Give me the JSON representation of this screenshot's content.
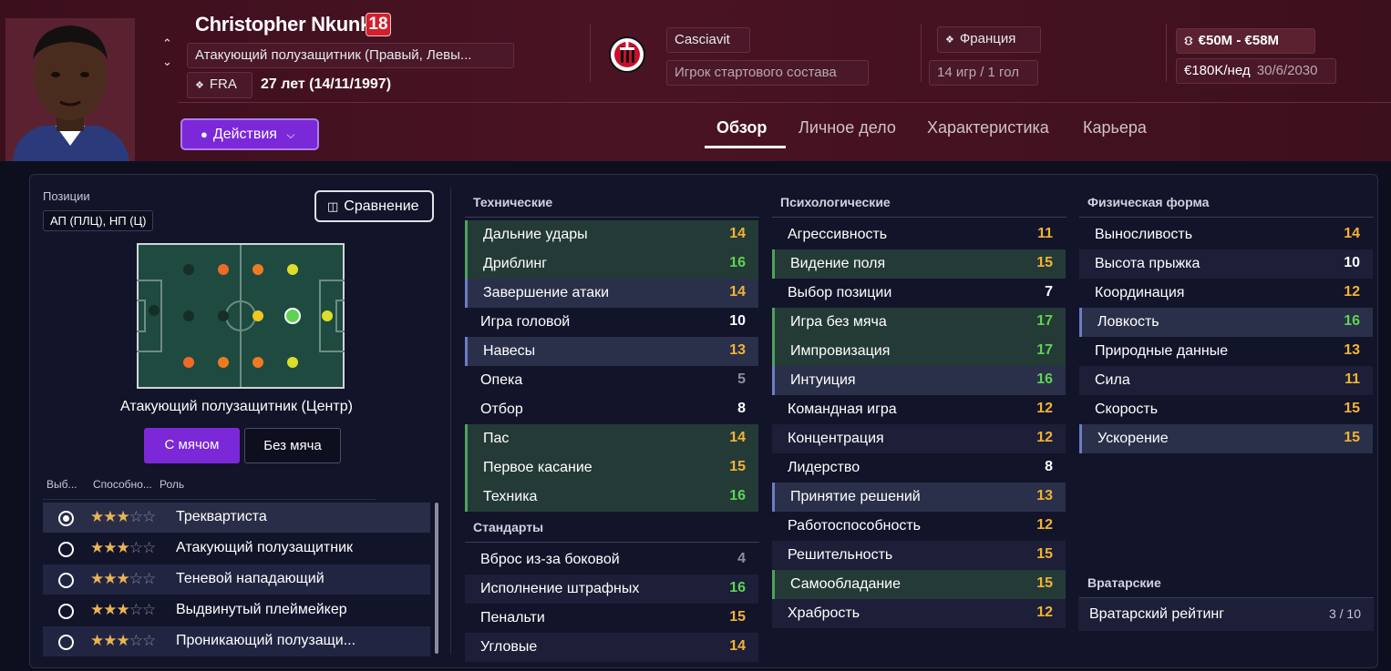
{
  "player": {
    "name": "Christopher Nkunku",
    "number": "18",
    "position": "Атакующий полузащитник (Правый, Левы...",
    "nationality": "FRA",
    "age": "27 лет (14/11/1997)",
    "club_nickname": "Casciavit",
    "squad_status": "Игрок стартового состава",
    "league_country": "Франция",
    "apps": "14 игр / 1 гол",
    "value": "€50M - €58M",
    "wage": "€180K/нед",
    "contract_end": "30/6/2030"
  },
  "actions_label": "Действия",
  "tabs": [
    "Обзор",
    "Личное дело",
    "Характеристика",
    "Карьера"
  ],
  "positions": {
    "label": "Позиции",
    "value": "АП (ПЛЦ), НП (Ц)",
    "compare_label": "Сравнение",
    "selected_role_position": "Атакующий полузащитник (Центр)",
    "with_ball": "С мячом",
    "without_ball": "Без мяча"
  },
  "roles_table": {
    "headers": [
      "Выб...",
      "Способно...",
      "Роль"
    ],
    "rows": [
      {
        "selected": true,
        "stars": 3,
        "role": "Треквартиста"
      },
      {
        "selected": false,
        "stars": 3,
        "role": "Атакующий полузащитник"
      },
      {
        "selected": false,
        "stars": 3,
        "role": "Теневой нападающий"
      },
      {
        "selected": false,
        "stars": 3,
        "role": "Выдвинутый плеймейкер"
      },
      {
        "selected": false,
        "stars": 3,
        "role": "Проникающий полузащи..."
      }
    ]
  },
  "technical": {
    "title": "Технические",
    "attrs": [
      {
        "name": "Дальние удары",
        "value": "14"
      },
      {
        "name": "Дриблинг",
        "value": "16"
      },
      {
        "name": "Завершение атаки",
        "value": "14"
      },
      {
        "name": "Игра головой",
        "value": "10"
      },
      {
        "name": "Навесы",
        "value": "13"
      },
      {
        "name": "Опека",
        "value": "5"
      },
      {
        "name": "Отбор",
        "value": "8"
      },
      {
        "name": "Пас",
        "value": "14"
      },
      {
        "name": "Первое касание",
        "value": "15"
      },
      {
        "name": "Техника",
        "value": "16"
      }
    ]
  },
  "setpieces": {
    "title": "Стандарты",
    "attrs": [
      {
        "name": "Вброс из-за боковой",
        "value": "4"
      },
      {
        "name": "Исполнение штрафных",
        "value": "16"
      },
      {
        "name": "Пенальти",
        "value": "15"
      },
      {
        "name": "Угловые",
        "value": "14"
      }
    ]
  },
  "mental": {
    "title": "Психологические",
    "attrs": [
      {
        "name": "Агрессивность",
        "value": "11"
      },
      {
        "name": "Видение поля",
        "value": "15"
      },
      {
        "name": "Выбор позиции",
        "value": "7"
      },
      {
        "name": "Игра без мяча",
        "value": "17"
      },
      {
        "name": "Импровизация",
        "value": "17"
      },
      {
        "name": "Интуиция",
        "value": "16"
      },
      {
        "name": "Командная игра",
        "value": "12"
      },
      {
        "name": "Концентрация",
        "value": "12"
      },
      {
        "name": "Лидерство",
        "value": "8"
      },
      {
        "name": "Принятие решений",
        "value": "13"
      },
      {
        "name": "Работоспособность",
        "value": "12"
      },
      {
        "name": "Решительность",
        "value": "15"
      },
      {
        "name": "Самообладание",
        "value": "15"
      },
      {
        "name": "Храбрость",
        "value": "12"
      }
    ]
  },
  "physical": {
    "title": "Физическая форма",
    "attrs": [
      {
        "name": "Выносливость",
        "value": "14"
      },
      {
        "name": "Высота прыжка",
        "value": "10"
      },
      {
        "name": "Координация",
        "value": "12"
      },
      {
        "name": "Ловкость",
        "value": "16"
      },
      {
        "name": "Природные данные",
        "value": "13"
      },
      {
        "name": "Сила",
        "value": "11"
      },
      {
        "name": "Скорость",
        "value": "15"
      },
      {
        "name": "Ускорение",
        "value": "15"
      }
    ]
  },
  "goalkeeping": {
    "title": "Вратарские",
    "rating_label": "Вратарский рейтинг",
    "rating_value": "3 / 10"
  }
}
